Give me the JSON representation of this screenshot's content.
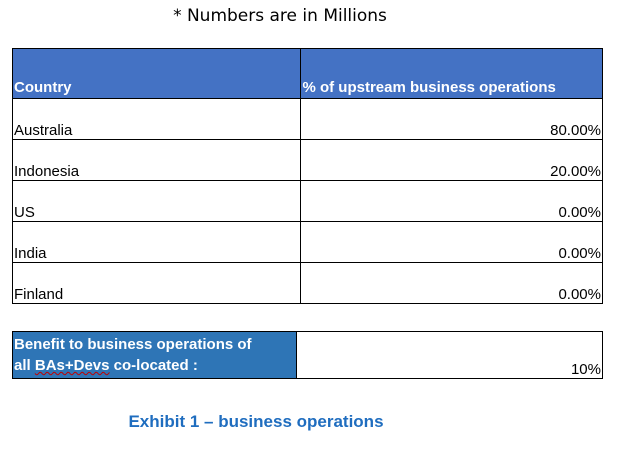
{
  "note": "* Numbers are in Millions",
  "table": {
    "headers": {
      "country": "Country",
      "percent": "% of upstream business operations"
    },
    "rows": [
      {
        "country": "Australia",
        "percent": "80.00%"
      },
      {
        "country": "Indonesia",
        "percent": "20.00%"
      },
      {
        "country": "US",
        "percent": "0.00%"
      },
      {
        "country": "India",
        "percent": "0.00%"
      },
      {
        "country": "Finland",
        "percent": "0.00%"
      }
    ]
  },
  "benefit": {
    "label_line1": "Benefit to business operations of",
    "label_line2_prefix": "all ",
    "label_line2_word": "BAs+Devs",
    "label_line2_suffix": " co-located :",
    "value": "10%"
  },
  "caption": "Exhibit 1 – business operations",
  "colors": {
    "header_bg": "#4472c4",
    "benefit_bg": "#2e75b6",
    "caption": "#1f6dbf"
  }
}
